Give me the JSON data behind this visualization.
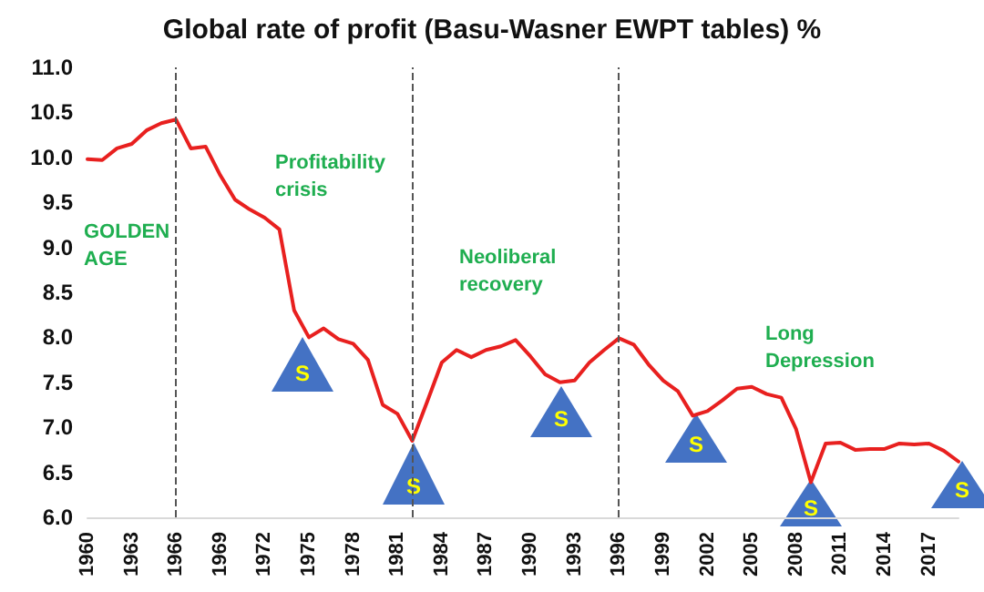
{
  "chart_data": {
    "type": "line",
    "title": "Global rate of profit (Basu-Wasner EWPT tables) %",
    "x": [
      1960,
      1961,
      1962,
      1963,
      1964,
      1965,
      1966,
      1967,
      1968,
      1969,
      1970,
      1971,
      1972,
      1973,
      1974,
      1975,
      1976,
      1977,
      1978,
      1979,
      1980,
      1981,
      1982,
      1983,
      1984,
      1985,
      1986,
      1987,
      1988,
      1989,
      1990,
      1991,
      1992,
      1993,
      1994,
      1995,
      1996,
      1997,
      1998,
      1999,
      2000,
      2001,
      2002,
      2003,
      2004,
      2005,
      2006,
      2007,
      2008,
      2009,
      2010,
      2011,
      2012,
      2013,
      2014,
      2015,
      2016,
      2017,
      2018,
      2019
    ],
    "series": [
      {
        "color": "#e8201f",
        "values": [
          9.98,
          9.97,
          10.1,
          10.15,
          10.3,
          10.38,
          10.42,
          10.1,
          10.12,
          9.8,
          9.53,
          9.42,
          9.33,
          9.2,
          8.3,
          8.0,
          8.1,
          7.98,
          7.93,
          7.75,
          7.25,
          7.15,
          6.85,
          7.28,
          7.72,
          7.86,
          7.78,
          7.86,
          7.9,
          7.97,
          7.79,
          7.59,
          7.5,
          7.52,
          7.72,
          7.86,
          7.99,
          7.92,
          7.7,
          7.52,
          7.4,
          7.13,
          7.18,
          7.3,
          7.43,
          7.45,
          7.37,
          7.33,
          6.98,
          6.39,
          6.82,
          6.83,
          6.75,
          6.76,
          6.76,
          6.82,
          6.81,
          6.82,
          6.74,
          6.62
        ]
      }
    ],
    "xlim": [
      1960,
      2019
    ],
    "xticks": [
      1960,
      1963,
      1966,
      1969,
      1972,
      1975,
      1978,
      1981,
      1984,
      1987,
      1990,
      1993,
      1996,
      1999,
      2002,
      2005,
      2008,
      2011,
      2014,
      2017
    ],
    "ylim": [
      6.0,
      11.0
    ],
    "yticks": [
      {
        "value": 6,
        "label": "6.0"
      },
      {
        "value": 6.5,
        "label": "6.5"
      },
      {
        "value": 7,
        "label": "7.0"
      },
      {
        "value": 7.5,
        "label": "7.5"
      },
      {
        "value": 8,
        "label": "8.0"
      },
      {
        "value": 8.5,
        "label": "8.5"
      },
      {
        "value": 9,
        "label": "9.0"
      },
      {
        "value": 9.5,
        "label": "9.5"
      },
      {
        "value": 10,
        "label": "10.0"
      },
      {
        "value": 10.5,
        "label": "10.5"
      },
      {
        "value": 11,
        "label": "11.0"
      }
    ],
    "grid": false,
    "marker": "none",
    "line_style": "solid",
    "ref_lines": [
      {
        "axis": "x",
        "value": 1966,
        "color": "#555555",
        "line_style": "dashed"
      },
      {
        "axis": "x",
        "value": 1982,
        "color": "#555555",
        "line_style": "dashed"
      },
      {
        "axis": "x",
        "value": 1996,
        "color": "#555555",
        "line_style": "dashed"
      }
    ],
    "annotations": [
      "GOLDEN AGE",
      "Profitability crisis",
      "Neoliberal recovery",
      "Long Depression",
      "S",
      "S",
      "S",
      "S",
      "S",
      "S"
    ]
  }
}
